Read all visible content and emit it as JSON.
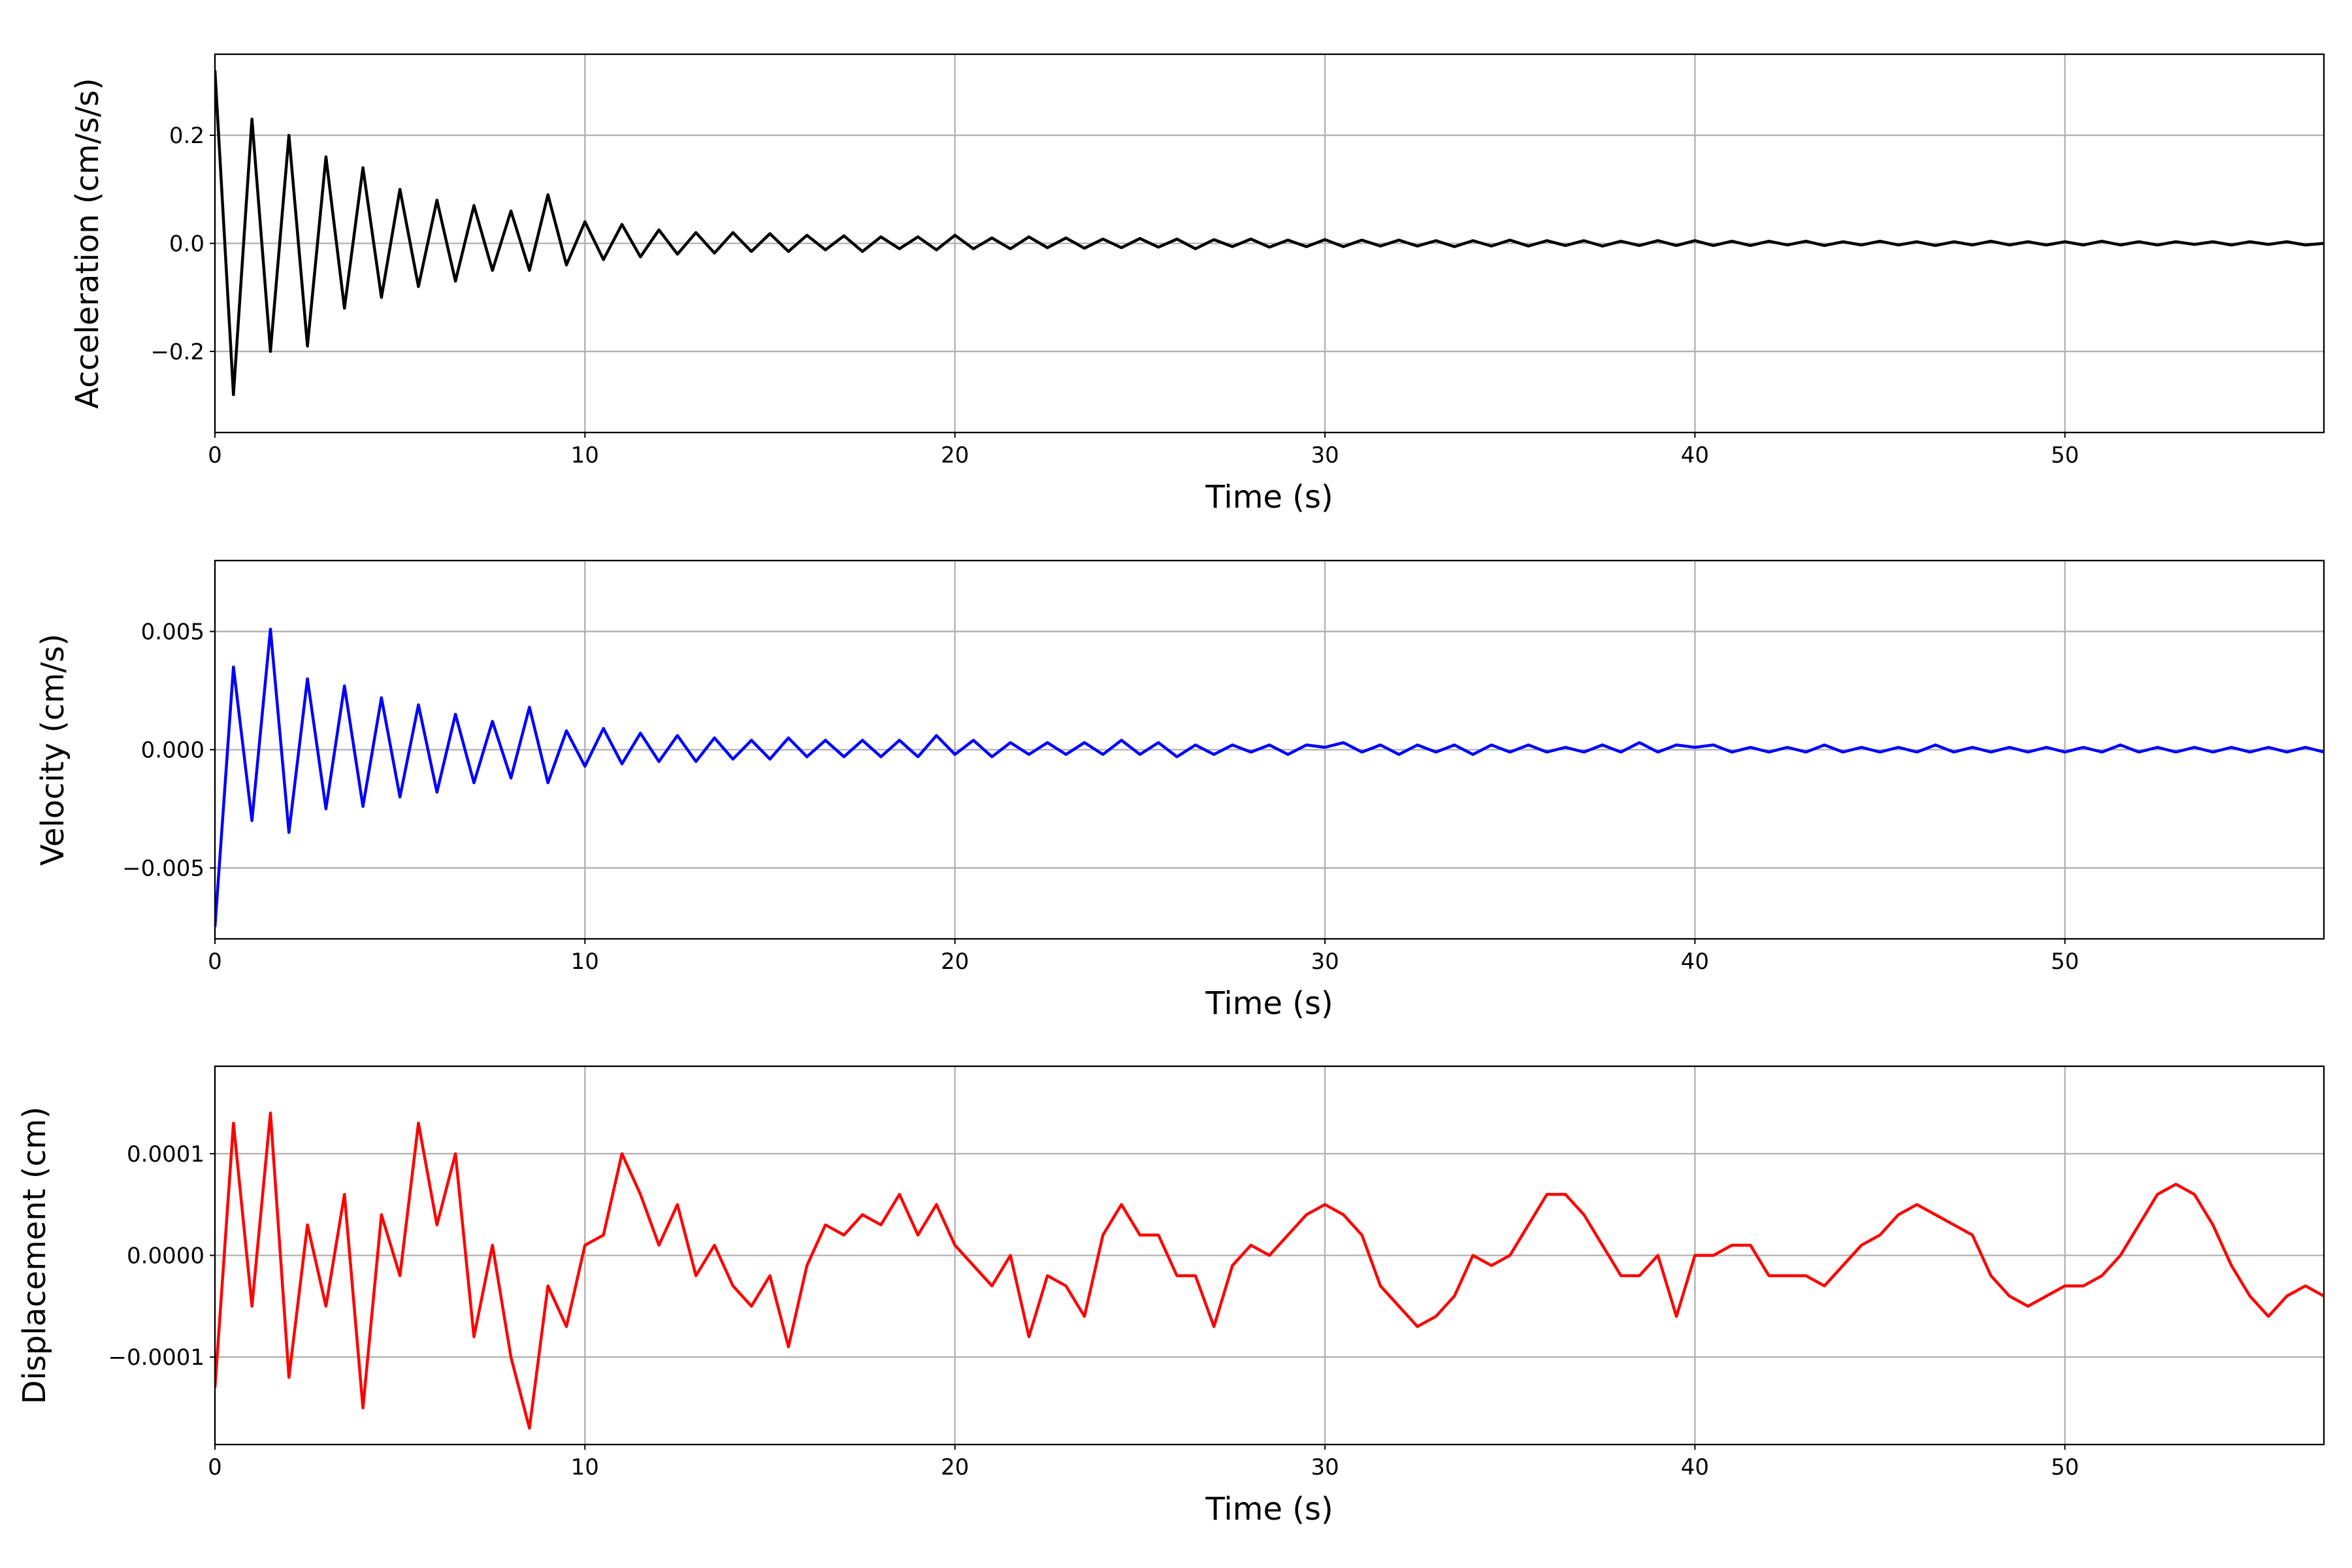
{
  "chart_data": [
    {
      "type": "line",
      "xlabel": "Time (s)",
      "ylabel": "Acceleration (cm/s/s)",
      "color": "#000000",
      "grid": true,
      "xlim": [
        0,
        57
      ],
      "ylim": [
        -0.35,
        0.35
      ],
      "xticks": [
        0,
        10,
        20,
        30,
        40,
        50
      ],
      "yticks": [
        {
          "value": -0.2,
          "label": "−0.2"
        },
        {
          "value": 0,
          "label": "0.0"
        },
        0.2
      ],
      "x": [
        0,
        0.5,
        1,
        1.5,
        2,
        2.5,
        3,
        3.5,
        4,
        4.5,
        5,
        5.5,
        6,
        6.5,
        7,
        7.5,
        8,
        8.5,
        9,
        9.5,
        10,
        10.5,
        11,
        11.5,
        12,
        12.5,
        13,
        13.5,
        14,
        14.5,
        15,
        15.5,
        16,
        16.5,
        17,
        17.5,
        18,
        18.5,
        19,
        19.5,
        20,
        20.5,
        21,
        21.5,
        22,
        22.5,
        23,
        23.5,
        24,
        24.5,
        25,
        25.5,
        26,
        26.5,
        27,
        27.5,
        28,
        28.5,
        29,
        29.5,
        30,
        30.5,
        31,
        31.5,
        32,
        32.5,
        33,
        33.5,
        34,
        34.5,
        35,
        35.5,
        36,
        36.5,
        37,
        37.5,
        38,
        38.5,
        39,
        39.5,
        40,
        40.5,
        41,
        41.5,
        42,
        42.5,
        43,
        43.5,
        44,
        44.5,
        45,
        45.5,
        46,
        46.5,
        47,
        47.5,
        48,
        48.5,
        49,
        49.5,
        50,
        50.5,
        51,
        51.5,
        52,
        52.5,
        53,
        53.5,
        54,
        54.5,
        55,
        55.5,
        56,
        56.5,
        57
      ],
      "values": [
        0.32,
        -0.28,
        0.23,
        -0.2,
        0.2,
        -0.19,
        0.16,
        -0.12,
        0.14,
        -0.1,
        0.1,
        -0.08,
        0.08,
        -0.07,
        0.07,
        -0.05,
        0.06,
        -0.05,
        0.09,
        -0.04,
        0.04,
        -0.03,
        0.035,
        -0.025,
        0.025,
        -0.02,
        0.02,
        -0.018,
        0.02,
        -0.015,
        0.018,
        -0.015,
        0.015,
        -0.012,
        0.014,
        -0.015,
        0.012,
        -0.01,
        0.012,
        -0.012,
        0.015,
        -0.01,
        0.01,
        -0.01,
        0.012,
        -0.008,
        0.01,
        -0.009,
        0.008,
        -0.008,
        0.009,
        -0.007,
        0.008,
        -0.01,
        0.007,
        -0.006,
        0.008,
        -0.007,
        0.006,
        -0.006,
        0.007,
        -0.006,
        0.006,
        -0.005,
        0.006,
        -0.005,
        0.005,
        -0.006,
        0.005,
        -0.005,
        0.006,
        -0.005,
        0.005,
        -0.004,
        0.005,
        -0.005,
        0.004,
        -0.004,
        0.005,
        -0.004,
        0.005,
        -0.004,
        0.004,
        -0.004,
        0.004,
        -0.003,
        0.004,
        -0.004,
        0.003,
        -0.003,
        0.004,
        -0.003,
        0.003,
        -0.004,
        0.003,
        -0.003,
        0.004,
        -0.003,
        0.003,
        -0.003,
        0.003,
        -0.003,
        0.004,
        -0.003,
        0.003,
        -0.003,
        0.003,
        -0.002,
        0.003,
        -0.003,
        0.003,
        -0.002,
        0.003,
        -0.003,
        0.0
      ]
    },
    {
      "type": "line",
      "xlabel": "Time (s)",
      "ylabel": "Velocity (cm/s)",
      "color": "#0000ff",
      "grid": true,
      "xlim": [
        0,
        57
      ],
      "ylim": [
        -0.008,
        0.008
      ],
      "xticks": [
        0,
        10,
        20,
        30,
        40,
        50
      ],
      "yticks": [
        {
          "value": -0.005,
          "label": "−0.005"
        },
        {
          "value": 0,
          "label": "0.000"
        },
        0.005
      ],
      "x": [
        0,
        0.5,
        1,
        1.5,
        2,
        2.5,
        3,
        3.5,
        4,
        4.5,
        5,
        5.5,
        6,
        6.5,
        7,
        7.5,
        8,
        8.5,
        9,
        9.5,
        10,
        10.5,
        11,
        11.5,
        12,
        12.5,
        13,
        13.5,
        14,
        14.5,
        15,
        15.5,
        16,
        16.5,
        17,
        17.5,
        18,
        18.5,
        19,
        19.5,
        20,
        20.5,
        21,
        21.5,
        22,
        22.5,
        23,
        23.5,
        24,
        24.5,
        25,
        25.5,
        26,
        26.5,
        27,
        27.5,
        28,
        28.5,
        29,
        29.5,
        30,
        30.5,
        31,
        31.5,
        32,
        32.5,
        33,
        33.5,
        34,
        34.5,
        35,
        35.5,
        36,
        36.5,
        37,
        37.5,
        38,
        38.5,
        39,
        39.5,
        40,
        40.5,
        41,
        41.5,
        42,
        42.5,
        43,
        43.5,
        44,
        44.5,
        45,
        45.5,
        46,
        46.5,
        47,
        47.5,
        48,
        48.5,
        49,
        49.5,
        50,
        50.5,
        51,
        51.5,
        52,
        52.5,
        53,
        53.5,
        54,
        54.5,
        55,
        55.5,
        56,
        56.5,
        57
      ],
      "values": [
        -0.0075,
        0.0035,
        -0.003,
        0.0051,
        -0.0035,
        0.003,
        -0.0025,
        0.0027,
        -0.0024,
        0.0022,
        -0.002,
        0.0019,
        -0.0018,
        0.0015,
        -0.0014,
        0.0012,
        -0.0012,
        0.0018,
        -0.0014,
        0.0008,
        -0.0007,
        0.0009,
        -0.0006,
        0.0007,
        -0.0005,
        0.0006,
        -0.0005,
        0.0005,
        -0.0004,
        0.0004,
        -0.0004,
        0.0005,
        -0.0003,
        0.0004,
        -0.0003,
        0.0004,
        -0.0003,
        0.0004,
        -0.0003,
        0.0006,
        -0.0002,
        0.0004,
        -0.0003,
        0.0003,
        -0.0002,
        0.0003,
        -0.0002,
        0.0003,
        -0.0002,
        0.0004,
        -0.0002,
        0.0003,
        -0.0003,
        0.0002,
        -0.0002,
        0.0002,
        -0.0001,
        0.0002,
        -0.0002,
        0.0002,
        0.0001,
        0.0003,
        -0.0001,
        0.0002,
        -0.0002,
        0.0002,
        -0.0001,
        0.0002,
        -0.0002,
        0.0002,
        -0.0001,
        0.0002,
        -0.0001,
        0.0001,
        -0.0001,
        0.0002,
        -0.0001,
        0.0003,
        -0.0001,
        0.0002,
        0.0001,
        0.0002,
        -0.0001,
        0.0001,
        -0.0001,
        0.0001,
        -0.0001,
        0.0002,
        -0.0001,
        0.0001,
        -0.0001,
        0.0001,
        -0.0001,
        0.0002,
        -0.0001,
        0.0001,
        -0.0001,
        0.0001,
        -0.0001,
        0.0001,
        -0.0001,
        0.0001,
        -0.0001,
        0.0002,
        -0.0001,
        0.0001,
        -0.0001,
        0.0001,
        -0.0001,
        0.0001,
        -0.0001,
        0.0001,
        -0.0001,
        0.0001,
        -0.0001
      ]
    },
    {
      "type": "line",
      "xlabel": "Time (s)",
      "ylabel": "Displacement (cm)",
      "color": "#ff0000",
      "grid": true,
      "xlim": [
        0,
        57
      ],
      "ylim": [
        -0.000186,
        0.000186
      ],
      "xticks": [
        0,
        10,
        20,
        30,
        40,
        50
      ],
      "yticks": [
        {
          "value": -0.0001,
          "label": "−0.0001"
        },
        {
          "value": 0,
          "label": "0.0000"
        },
        0.0001
      ],
      "x": [
        0,
        0.5,
        1,
        1.5,
        2,
        2.5,
        3,
        3.5,
        4,
        4.5,
        5,
        5.5,
        6,
        6.5,
        7,
        7.5,
        8,
        8.5,
        9,
        9.5,
        10,
        10.5,
        11,
        11.5,
        12,
        12.5,
        13,
        13.5,
        14,
        14.5,
        15,
        15.5,
        16,
        16.5,
        17,
        17.5,
        18,
        18.5,
        19,
        19.5,
        20,
        20.5,
        21,
        21.5,
        22,
        22.5,
        23,
        23.5,
        24,
        24.5,
        25,
        25.5,
        26,
        26.5,
        27,
        27.5,
        28,
        28.5,
        29,
        29.5,
        30,
        30.5,
        31,
        31.5,
        32,
        32.5,
        33,
        33.5,
        34,
        34.5,
        35,
        35.5,
        36,
        36.5,
        37,
        37.5,
        38,
        38.5,
        39,
        39.5,
        40,
        40.5,
        41,
        41.5,
        42,
        42.5,
        43,
        43.5,
        44,
        44.5,
        45,
        45.5,
        46,
        46.5,
        47,
        47.5,
        48,
        48.5,
        49,
        49.5,
        50,
        50.5,
        51,
        51.5,
        52,
        52.5,
        53,
        53.5,
        54,
        54.5,
        55,
        55.5,
        56,
        56.5,
        57
      ],
      "values": [
        -0.00013,
        0.00013,
        -5e-05,
        0.00014,
        -0.00012,
        3e-05,
        -5e-05,
        6e-05,
        -0.00015,
        4e-05,
        -2e-05,
        0.00013,
        3e-05,
        0.0001,
        -8e-05,
        1e-05,
        -0.0001,
        -0.00017,
        -3e-05,
        -7e-05,
        1e-05,
        2e-05,
        0.0001,
        6e-05,
        1e-05,
        5e-05,
        -2e-05,
        1e-05,
        -3e-05,
        -5e-05,
        -2e-05,
        -9e-05,
        -1e-05,
        3e-05,
        2e-05,
        4e-05,
        3e-05,
        6e-05,
        2e-05,
        5e-05,
        1e-05,
        -1e-05,
        -3e-05,
        0.0,
        -8e-05,
        -2e-05,
        -3e-05,
        -6e-05,
        2e-05,
        5e-05,
        2e-05,
        2e-05,
        -2e-05,
        -2e-05,
        -7e-05,
        -1e-05,
        1e-05,
        0.0,
        2e-05,
        4e-05,
        5e-05,
        4e-05,
        2e-05,
        -3e-05,
        -5e-05,
        -7e-05,
        -6e-05,
        -4e-05,
        0.0,
        -1e-05,
        0.0,
        3e-05,
        6e-05,
        6e-05,
        4e-05,
        1e-05,
        -2e-05,
        -2e-05,
        0.0,
        -6e-05,
        0.0,
        0.0,
        1e-05,
        1e-05,
        -2e-05,
        -2e-05,
        -2e-05,
        -3e-05,
        -1e-05,
        1e-05,
        2e-05,
        4e-05,
        5e-05,
        4e-05,
        3e-05,
        2e-05,
        -2e-05,
        -4e-05,
        -5e-05,
        -4e-05,
        -3e-05,
        -3e-05,
        -2e-05,
        0.0,
        3e-05,
        6e-05,
        7e-05,
        6e-05,
        3e-05,
        -1e-05,
        -4e-05,
        -6e-05,
        -4e-05,
        -3e-05,
        -4e-05
      ]
    }
  ]
}
